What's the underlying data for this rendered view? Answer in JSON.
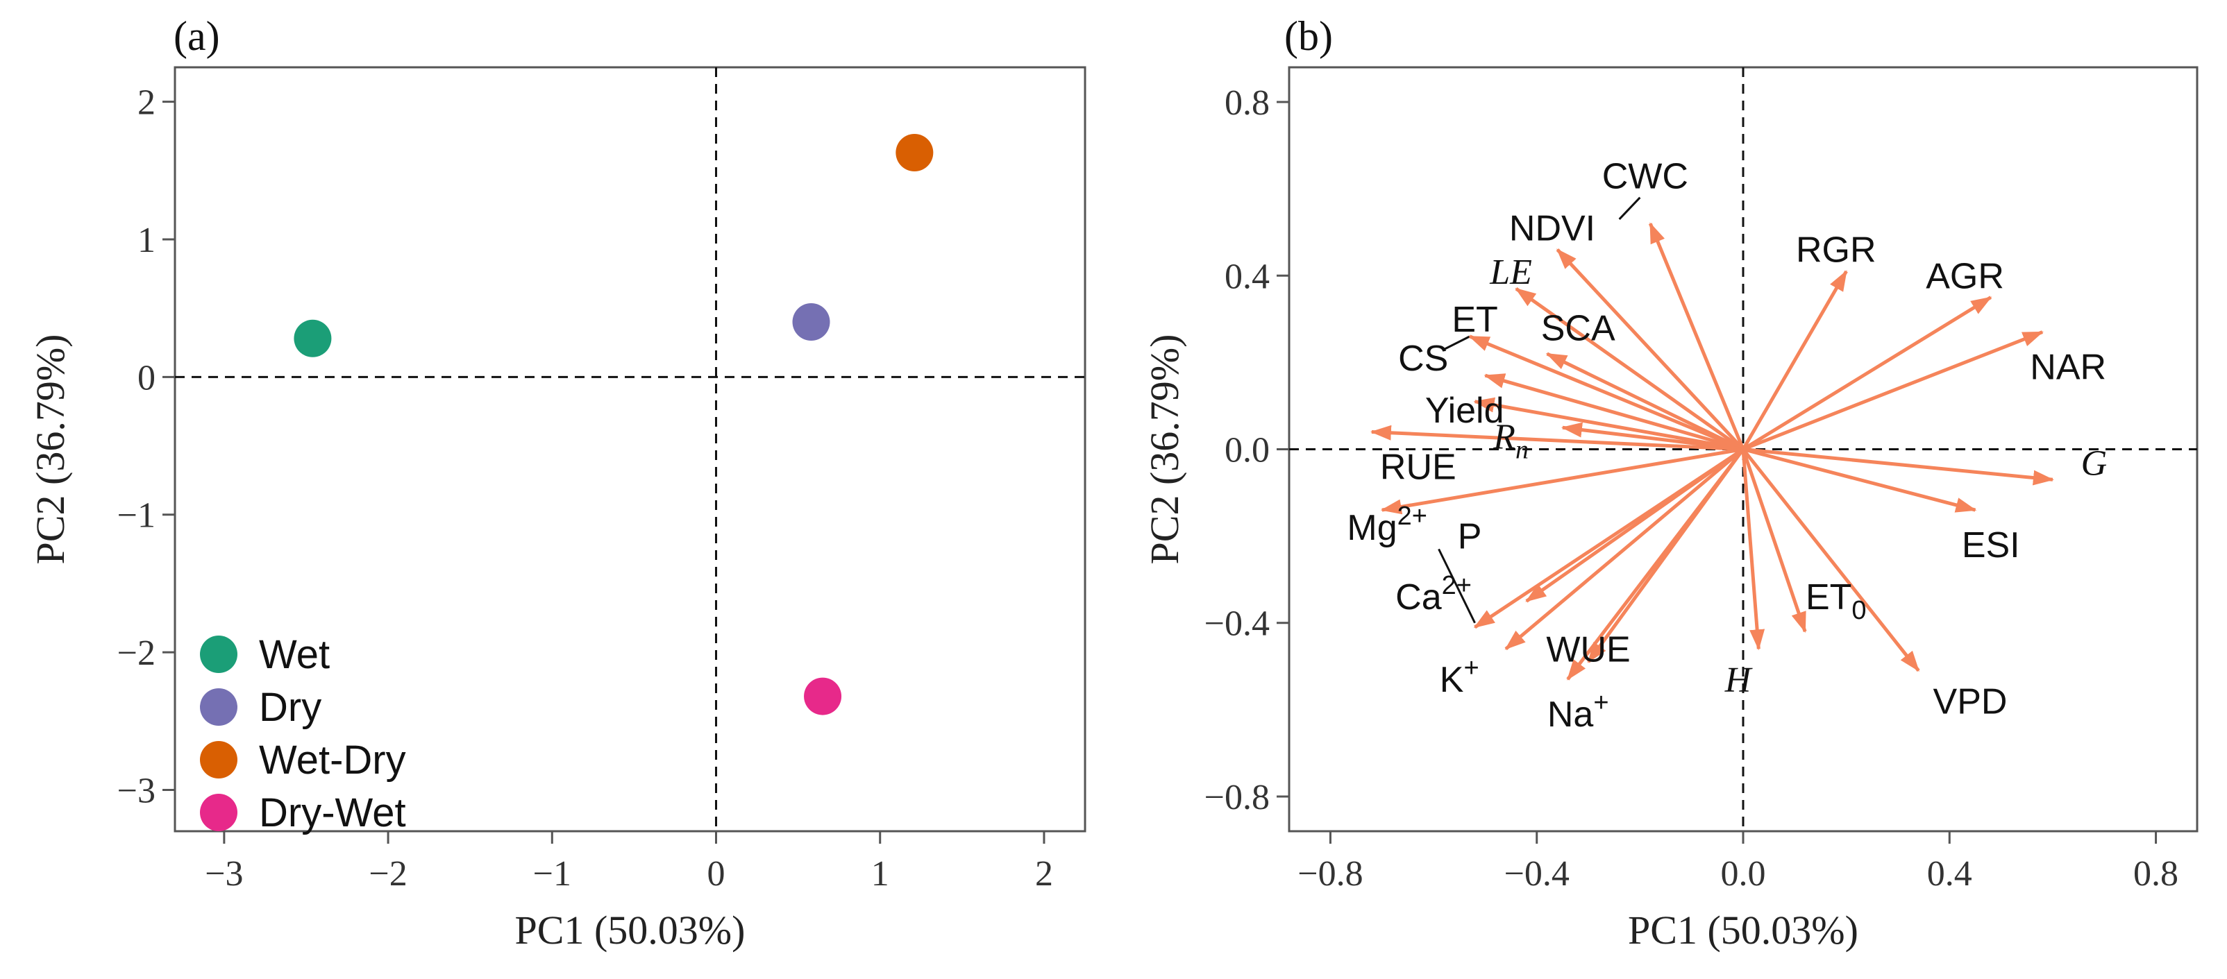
{
  "chart_data": [
    {
      "type": "scatter",
      "panel_label": "(a)",
      "xlabel": "PC1 (50.03%)",
      "ylabel": "PC2 (36.79%)",
      "xlim": [
        -3.3,
        2.25
      ],
      "ylim": [
        -3.3,
        2.25
      ],
      "xticks": [
        -3,
        -2,
        -1,
        0,
        1,
        2
      ],
      "yticks": [
        -3,
        -2,
        -1,
        0,
        1,
        2
      ],
      "xtick_labels": [
        "−3",
        "−2",
        "−1",
        "0",
        "1",
        "2"
      ],
      "ytick_labels": [
        "−3",
        "−2",
        "−1",
        "0",
        "1",
        "2"
      ],
      "grid": false,
      "reference_lines": {
        "x": 0,
        "y": 0,
        "style": "dashed"
      },
      "legend": "bottom-left",
      "series": [
        {
          "name": "Wet",
          "color": "#1b9e77",
          "x": -2.46,
          "y": 0.28
        },
        {
          "name": "Dry",
          "color": "#7570b3",
          "x": 0.58,
          "y": 0.4
        },
        {
          "name": "Wet-Dry",
          "color": "#d95f02",
          "x": 1.21,
          "y": 1.63
        },
        {
          "name": "Dry-Wet",
          "color": "#e7298a",
          "x": 0.65,
          "y": -2.32
        }
      ]
    },
    {
      "type": "scatter",
      "panel_label": "(b)",
      "xlabel": "PC1 (50.03%)",
      "ylabel": "PC2 (36.79%)",
      "xlim": [
        -0.88,
        0.88
      ],
      "ylim": [
        -0.88,
        0.88
      ],
      "xticks": [
        -0.8,
        -0.4,
        0.0,
        0.4,
        0.8
      ],
      "yticks": [
        -0.8,
        -0.4,
        0.0,
        0.4,
        0.8
      ],
      "xtick_labels": [
        "−0.8",
        "−0.4",
        "0.0",
        "0.4",
        "0.8"
      ],
      "ytick_labels": [
        "−0.8",
        "−0.4",
        "0.0",
        "0.4",
        "0.8"
      ],
      "grid": false,
      "reference_lines": {
        "x": 0,
        "y": 0,
        "style": "dashed"
      },
      "arrow_color": "#f5845a",
      "vectors": [
        {
          "label": "CWC",
          "x": -0.18,
          "y": 0.52,
          "lx": -0.19,
          "ly": 0.63,
          "italic": false
        },
        {
          "label": "NDVI",
          "x": -0.36,
          "y": 0.46,
          "lx": -0.37,
          "ly": 0.51,
          "italic": false
        },
        {
          "label": "LE",
          "x": -0.44,
          "y": 0.37,
          "lx": -0.45,
          "ly": 0.41,
          "italic": true
        },
        {
          "label": "ET",
          "x": -0.53,
          "y": 0.26,
          "lx": -0.52,
          "ly": 0.3,
          "italic": false
        },
        {
          "label": "SCA",
          "x": -0.38,
          "y": 0.22,
          "lx": -0.32,
          "ly": 0.28,
          "italic": false
        },
        {
          "label": "CS",
          "x": -0.5,
          "y": 0.17,
          "lx": -0.62,
          "ly": 0.21,
          "italic": false
        },
        {
          "label": "Yield",
          "x": -0.52,
          "y": 0.11,
          "lx": -0.54,
          "ly": 0.09,
          "italic": false
        },
        {
          "label": "Rn",
          "x": -0.35,
          "y": 0.05,
          "lx": -0.45,
          "ly": 0.03,
          "italic": true
        },
        {
          "label": "RUE",
          "x": -0.72,
          "y": 0.04,
          "lx": -0.63,
          "ly": -0.04,
          "italic": false
        },
        {
          "label": "Mg2+",
          "x": -0.7,
          "y": -0.14,
          "lx": -0.69,
          "ly": -0.18,
          "italic": false
        },
        {
          "label": "P",
          "x": -0.42,
          "y": -0.35,
          "lx": -0.53,
          "ly": -0.2,
          "italic": false
        },
        {
          "label": "Ca2+",
          "x": -0.52,
          "y": -0.41,
          "lx": -0.6,
          "ly": -0.34,
          "italic": false
        },
        {
          "label": "K+",
          "x": -0.46,
          "y": -0.46,
          "lx": -0.55,
          "ly": -0.53,
          "italic": false
        },
        {
          "label": "WUE",
          "x": -0.3,
          "y": -0.49,
          "lx": -0.3,
          "ly": -0.46,
          "italic": false
        },
        {
          "label": "Na+",
          "x": -0.34,
          "y": -0.53,
          "lx": -0.32,
          "ly": -0.61,
          "italic": false
        },
        {
          "label": "H",
          "x": 0.03,
          "y": -0.46,
          "lx": -0.01,
          "ly": -0.53,
          "italic": true
        },
        {
          "label": "ET0",
          "x": 0.12,
          "y": -0.42,
          "lx": 0.18,
          "ly": -0.34,
          "italic": false
        },
        {
          "label": "VPD",
          "x": 0.34,
          "y": -0.51,
          "lx": 0.44,
          "ly": -0.58,
          "italic": false
        },
        {
          "label": "ESI",
          "x": 0.45,
          "y": -0.14,
          "lx": 0.48,
          "ly": -0.22,
          "italic": false
        },
        {
          "label": "G",
          "x": 0.6,
          "y": -0.07,
          "lx": 0.68,
          "ly": -0.03,
          "italic": true
        },
        {
          "label": "NAR",
          "x": 0.58,
          "y": 0.27,
          "lx": 0.63,
          "ly": 0.19,
          "italic": false
        },
        {
          "label": "AGR",
          "x": 0.48,
          "y": 0.35,
          "lx": 0.43,
          "ly": 0.4,
          "italic": false
        },
        {
          "label": "RGR",
          "x": 0.2,
          "y": 0.41,
          "lx": 0.18,
          "ly": 0.46,
          "italic": false
        }
      ]
    }
  ]
}
